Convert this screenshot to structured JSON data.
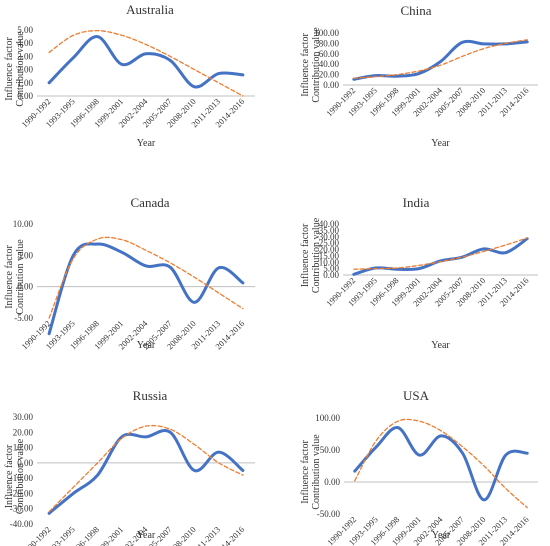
{
  "chart_data": [
    {
      "type": "line",
      "title": "Australia",
      "xlabel": "Year",
      "ylabel_lines": [
        "Influence factor",
        "Contribution value"
      ],
      "categories": [
        "1990-1992",
        "1993-1995",
        "1996-1998",
        "1999-2001",
        "2002-2004",
        "2005-2007",
        "2008-2010",
        "2011-2013",
        "2014-2016"
      ],
      "yticks": [
        "0.00",
        "1.00",
        "2.00",
        "3.00",
        "4.00",
        "5.00"
      ],
      "ylim": [
        0,
        5
      ],
      "series": [
        {
          "values": [
            1.0,
            2.9,
            4.5,
            2.4,
            3.2,
            2.7,
            0.7,
            1.7,
            1.6
          ]
        },
        {
          "values": [
            3.3,
            4.6,
            4.95,
            4.6,
            3.9,
            3.0,
            2.0,
            1.0,
            0.0
          ],
          "trend": true
        }
      ]
    },
    {
      "type": "line",
      "title": "China",
      "xlabel": "Year",
      "ylabel_lines": [
        "Influence factor",
        "Contribution value"
      ],
      "categories": [
        "1990-1992",
        "1993-1995",
        "1996-1998",
        "1999-2001",
        "2002-2004",
        "2005-2007",
        "2008-2010",
        "2011-2013",
        "2014-2016"
      ],
      "yticks": [
        "0.00",
        "20.00",
        "40.00",
        "60.00",
        "80.00",
        "100.00"
      ],
      "ylim": [
        0,
        100
      ],
      "series": [
        {
          "values": [
            11,
            18,
            17,
            22,
            45,
            82,
            79,
            79,
            83
          ]
        },
        {
          "values": [
            13,
            16,
            20,
            27,
            38,
            55,
            70,
            80,
            87
          ],
          "trend": true
        }
      ]
    },
    {
      "type": "line",
      "title": "Canada",
      "xlabel": "Year",
      "ylabel_lines": [
        "Influence factor",
        "Contribution value"
      ],
      "categories": [
        "1990-1992",
        "1993-1995",
        "1996-1998",
        "1999-2001",
        "2002-2004",
        "2005-2007",
        "2008-2010",
        "2011-2013",
        "2014-2016"
      ],
      "yticks": [
        "-5.00",
        "0.00",
        "5.00",
        "10.00"
      ],
      "ylim": [
        -5,
        10
      ],
      "series": [
        {
          "values": [
            -7.5,
            5.0,
            6.8,
            5.5,
            3.3,
            3.1,
            -2.5,
            3.0,
            0.6
          ]
        },
        {
          "values": [
            -5.0,
            4.5,
            7.6,
            7.5,
            5.8,
            3.8,
            1.5,
            -1.0,
            -3.5
          ],
          "trend": true
        }
      ]
    },
    {
      "type": "line",
      "title": "India",
      "xlabel": "Year",
      "ylabel_lines": [
        "Influence factor",
        "Contribution value"
      ],
      "categories": [
        "1990-1992",
        "1993-1995",
        "1996-1998",
        "1999-2001",
        "2002-2004",
        "2005-2007",
        "2008-2010",
        "2011-2013",
        "2014-2016"
      ],
      "yticks": [
        "0.00",
        "5.00",
        "10.00",
        "15.00",
        "20.00",
        "25.00",
        "30.00",
        "35.00",
        "40.00"
      ],
      "ylim": [
        0,
        40
      ],
      "series": [
        {
          "values": [
            0.5,
            5.5,
            4.5,
            5.0,
            11.0,
            14.0,
            20.5,
            17.5,
            28.5
          ]
        },
        {
          "values": [
            4.5,
            5.0,
            5.5,
            7.5,
            10.5,
            14.0,
            18.5,
            23.5,
            29.0
          ],
          "trend": true
        }
      ]
    },
    {
      "type": "line",
      "title": "Russia",
      "xlabel": "Year",
      "ylabel_lines": [
        "Influence factor",
        "Contribution value"
      ],
      "categories": [
        "1990-1992",
        "1993-1995",
        "1996-1998",
        "1999-2001",
        "2002-2004",
        "2005-2007",
        "2008-2010",
        "2011-2013",
        "2014-2016"
      ],
      "yticks": [
        "-40.00",
        "-30.00",
        "-20.00",
        "-10.00",
        "0.00",
        "10.00",
        "20.00",
        "30.00"
      ],
      "ylim": [
        -40,
        30
      ],
      "series": [
        {
          "values": [
            -33,
            -20,
            -8,
            17,
            17,
            20,
            -5,
            7,
            -5
          ]
        },
        {
          "values": [
            -32,
            -16,
            0,
            16,
            24,
            22,
            12,
            0,
            -8
          ],
          "trend": true
        }
      ]
    },
    {
      "type": "line",
      "title": "USA",
      "xlabel": "Year",
      "ylabel_lines": [
        "Influence factor",
        "Contribution value"
      ],
      "categories": [
        "1990-1992",
        "1993-1995",
        "1996-1998",
        "1999-2001",
        "2002-2004",
        "2005-2007",
        "2008-2010",
        "2011-2013",
        "2014-2016"
      ],
      "yticks": [
        "-50.00",
        "0.00",
        "50.00",
        "100.00"
      ],
      "ylim": [
        -50,
        100
      ],
      "series": [
        {
          "values": [
            17,
            55,
            85,
            42,
            72,
            45,
            -28,
            42,
            45
          ]
        },
        {
          "values": [
            2,
            65,
            95,
            95,
            80,
            55,
            25,
            -10,
            -40
          ],
          "trend": true
        }
      ]
    }
  ],
  "colors": {
    "line": "#4472C4",
    "trend": "#ED7D31",
    "axis": "#BFBFBF",
    "text": "#333333"
  }
}
